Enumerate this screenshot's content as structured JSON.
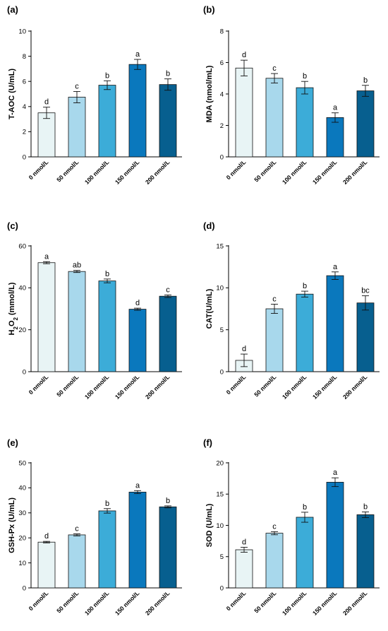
{
  "palette": [
    "#e8f4f5",
    "#a8d8ec",
    "#3cacd8",
    "#0a78bd",
    "#075f8f"
  ],
  "chart_data": [
    {
      "type": "bar",
      "panel": "(a)",
      "ylabel": "T-AOC (U/mL)",
      "ylim": [
        0,
        10
      ],
      "yticks": [
        0,
        2,
        4,
        6,
        8,
        10
      ],
      "categories": [
        "0 nmol/L",
        "50 nmol/L",
        "100 nmol/L",
        "150 nmol/L",
        "200 nmol/L"
      ],
      "values": [
        3.5,
        4.75,
        5.7,
        7.35,
        5.75
      ],
      "errors": [
        0.45,
        0.45,
        0.35,
        0.4,
        0.45
      ],
      "letters": [
        "d",
        "c",
        "b",
        "a",
        "b"
      ]
    },
    {
      "type": "bar",
      "panel": "(b)",
      "ylabel": "MDA (nmol/mL)",
      "ylim": [
        0,
        8
      ],
      "yticks": [
        0,
        2,
        4,
        6,
        8
      ],
      "categories": [
        "0 nmol/L",
        "50 nmol/L",
        "100 nmol/L",
        "150 nmol/L",
        "200 nmol/L"
      ],
      "values": [
        5.65,
        5.0,
        4.4,
        2.5,
        4.2
      ],
      "errors": [
        0.5,
        0.3,
        0.4,
        0.3,
        0.35
      ],
      "letters": [
        "d",
        "c",
        "b",
        "a",
        "b"
      ]
    },
    {
      "type": "bar",
      "panel": "(c)",
      "ylabel": "H2O2 (mmol/L)",
      "ylabel_parts": [
        "H",
        "2",
        "O",
        "2",
        " (mmol/L)"
      ],
      "ylim": [
        0,
        60
      ],
      "yticks": [
        0,
        20,
        40,
        60
      ],
      "categories": [
        "0 nmol/L",
        "50 nmol/L",
        "100 nmol/L",
        "150 nmol/L",
        "200 nmol/L"
      ],
      "values": [
        52,
        47.8,
        43.3,
        29.8,
        36.0
      ],
      "errors": [
        0.5,
        0.5,
        0.9,
        0.5,
        0.6
      ],
      "letters": [
        "a",
        "ab",
        "b",
        "d",
        "c"
      ]
    },
    {
      "type": "bar",
      "panel": "(d)",
      "ylabel": "CAT(U/mL)",
      "ylim": [
        0,
        15
      ],
      "yticks": [
        0,
        5,
        10,
        15
      ],
      "categories": [
        "0 nmol/L",
        "50 nmol/L",
        "100 nmol/L",
        "150 nmol/L",
        "200 nmol/L"
      ],
      "values": [
        1.35,
        7.5,
        9.25,
        11.45,
        8.2
      ],
      "errors": [
        0.75,
        0.55,
        0.35,
        0.45,
        0.85
      ],
      "letters": [
        "d",
        "c",
        "b",
        "a",
        "bc"
      ]
    },
    {
      "type": "bar",
      "panel": "(e)",
      "ylabel": "GSH-Px (U/mL)",
      "ylim": [
        0,
        50
      ],
      "yticks": [
        0,
        10,
        20,
        30,
        40,
        50
      ],
      "categories": [
        "0 nmol/L",
        "50 nmol/L",
        "100 nmol/L",
        "150 nmol/L",
        "200 nmol/L"
      ],
      "values": [
        18.3,
        21.2,
        30.8,
        38.3,
        32.4
      ],
      "errors": [
        0.3,
        0.4,
        0.9,
        0.6,
        0.4
      ],
      "letters": [
        "d",
        "c",
        "b",
        "a",
        "b"
      ]
    },
    {
      "type": "bar",
      "panel": "(f)",
      "ylabel": "SOD (U/mL)",
      "ylim": [
        0,
        20
      ],
      "yticks": [
        0,
        5,
        10,
        15,
        20
      ],
      "categories": [
        "0 nmol/L",
        "50 nmol/L",
        "100 nmol/L",
        "150 nmol/L",
        "200 nmol/L"
      ],
      "values": [
        6.1,
        8.75,
        11.3,
        16.9,
        11.7
      ],
      "errors": [
        0.4,
        0.25,
        0.8,
        0.7,
        0.45
      ],
      "letters": [
        "d",
        "c",
        "b",
        "a",
        "b"
      ]
    }
  ]
}
